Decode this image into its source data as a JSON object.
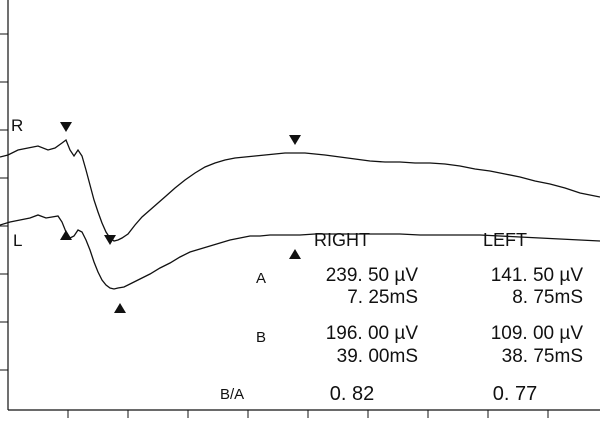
{
  "chart_data": {
    "type": "line",
    "title": "",
    "xlabel": "",
    "ylabel": "",
    "grid": false,
    "series": [
      {
        "name": "R",
        "points": [
          [
            0,
            157
          ],
          [
            8,
            155
          ],
          [
            18,
            150
          ],
          [
            28,
            148
          ],
          [
            38,
            146
          ],
          [
            48,
            150
          ],
          [
            55,
            148
          ],
          [
            62,
            143
          ],
          [
            66,
            140
          ],
          [
            70,
            150
          ],
          [
            74,
            156
          ],
          [
            78,
            150
          ],
          [
            82,
            156
          ],
          [
            86,
            170
          ],
          [
            90,
            185
          ],
          [
            94,
            200
          ],
          [
            98,
            212
          ],
          [
            102,
            223
          ],
          [
            106,
            232
          ],
          [
            110,
            238
          ],
          [
            114,
            241
          ],
          [
            118,
            240
          ],
          [
            122,
            238
          ],
          [
            128,
            234
          ],
          [
            135,
            225
          ],
          [
            142,
            217
          ],
          [
            150,
            210
          ],
          [
            158,
            203
          ],
          [
            166,
            196
          ],
          [
            175,
            188
          ],
          [
            185,
            180
          ],
          [
            195,
            173
          ],
          [
            205,
            167
          ],
          [
            215,
            163
          ],
          [
            225,
            160
          ],
          [
            235,
            158
          ],
          [
            245,
            157
          ],
          [
            255,
            156
          ],
          [
            265,
            155
          ],
          [
            275,
            154
          ],
          [
            285,
            153
          ],
          [
            295,
            153
          ],
          [
            305,
            153
          ],
          [
            315,
            154
          ],
          [
            325,
            155
          ],
          [
            340,
            157
          ],
          [
            355,
            159
          ],
          [
            370,
            161
          ],
          [
            385,
            162
          ],
          [
            400,
            162
          ],
          [
            415,
            163
          ],
          [
            430,
            163
          ],
          [
            445,
            164
          ],
          [
            460,
            166
          ],
          [
            475,
            169
          ],
          [
            490,
            171
          ],
          [
            505,
            174
          ],
          [
            520,
            177
          ],
          [
            535,
            181
          ],
          [
            550,
            184
          ],
          [
            565,
            188
          ],
          [
            580,
            193
          ],
          [
            600,
            197
          ]
        ]
      },
      {
        "name": "L",
        "points": [
          [
            0,
            225
          ],
          [
            10,
            222
          ],
          [
            20,
            220
          ],
          [
            30,
            218
          ],
          [
            38,
            215
          ],
          [
            46,
            218
          ],
          [
            52,
            217
          ],
          [
            58,
            216
          ],
          [
            62,
            222
          ],
          [
            66,
            232
          ],
          [
            70,
            238
          ],
          [
            74,
            236
          ],
          [
            78,
            230
          ],
          [
            82,
            232
          ],
          [
            86,
            240
          ],
          [
            90,
            250
          ],
          [
            94,
            262
          ],
          [
            98,
            272
          ],
          [
            102,
            280
          ],
          [
            106,
            285
          ],
          [
            110,
            288
          ],
          [
            114,
            289
          ],
          [
            118,
            288
          ],
          [
            124,
            287
          ],
          [
            132,
            283
          ],
          [
            140,
            279
          ],
          [
            150,
            274
          ],
          [
            160,
            268
          ],
          [
            170,
            263
          ],
          [
            180,
            257
          ],
          [
            190,
            252
          ],
          [
            200,
            249
          ],
          [
            210,
            246
          ],
          [
            220,
            243
          ],
          [
            230,
            240
          ],
          [
            240,
            238
          ],
          [
            250,
            236
          ],
          [
            260,
            236
          ],
          [
            270,
            235
          ],
          [
            280,
            235
          ],
          [
            290,
            235
          ],
          [
            300,
            235
          ],
          [
            315,
            234
          ],
          [
            330,
            234
          ],
          [
            345,
            234
          ],
          [
            360,
            234
          ],
          [
            380,
            234
          ],
          [
            400,
            234
          ],
          [
            420,
            235
          ],
          [
            440,
            235
          ],
          [
            460,
            235
          ],
          [
            480,
            235
          ],
          [
            500,
            236
          ],
          [
            520,
            237
          ],
          [
            540,
            238
          ],
          [
            560,
            239
          ],
          [
            580,
            240
          ],
          [
            600,
            241
          ]
        ]
      }
    ],
    "markers": {
      "R_a": [
        66,
        140
      ],
      "R_b": [
        295,
        153
      ],
      "L_a_up": [
        66,
        232
      ],
      "L_a_down": [
        110,
        238
      ],
      "L_trough": [
        120,
        289
      ],
      "L_b": [
        295,
        235
      ]
    },
    "table": {
      "col_headers": [
        "RIGHT",
        "LEFT"
      ],
      "rows": [
        {
          "label": "A",
          "right": [
            "239. 50 µV",
            "7. 25mS"
          ],
          "left": [
            "141. 50 µV",
            "8. 75mS"
          ]
        },
        {
          "label": "B",
          "right": [
            "196. 00 µV",
            "39. 00mS"
          ],
          "left": [
            "109. 00 µV",
            "38. 75mS"
          ]
        },
        {
          "label": "B/A",
          "right": [
            "0. 82"
          ],
          "left": [
            "0. 77"
          ]
        }
      ]
    }
  }
}
